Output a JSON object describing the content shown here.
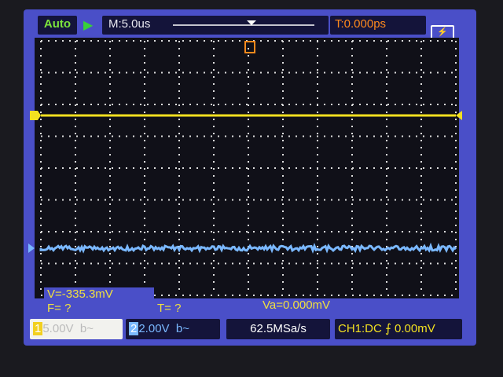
{
  "top_bar": {
    "mode": "Auto",
    "run_icon": "play-icon",
    "timebase": "M:5.0us",
    "trigger_time": "T:0.000ps",
    "battery_icon": "battery-charging-icon"
  },
  "measurements": {
    "voltage": "V=-335.3mV",
    "frequency": "F=  ?",
    "period": "T=  ?",
    "va": "Va=0.000mV"
  },
  "bottom_bar": {
    "ch1_number": "1",
    "ch1_scale": "5.00V",
    "ch1_coupling": "b~",
    "ch2_number": "2",
    "ch2_scale": "2.00V",
    "ch2_coupling": "b~",
    "sample_rate": "62.5MSa/s",
    "trigger_info": "CH1:DC",
    "trigger_edge_icon": "rising-edge-icon",
    "trigger_level": "0.00mV"
  },
  "colors": {
    "ch1": "#f2e020",
    "ch2": "#7ab8ff",
    "trigger": "#ff8a1c"
  }
}
